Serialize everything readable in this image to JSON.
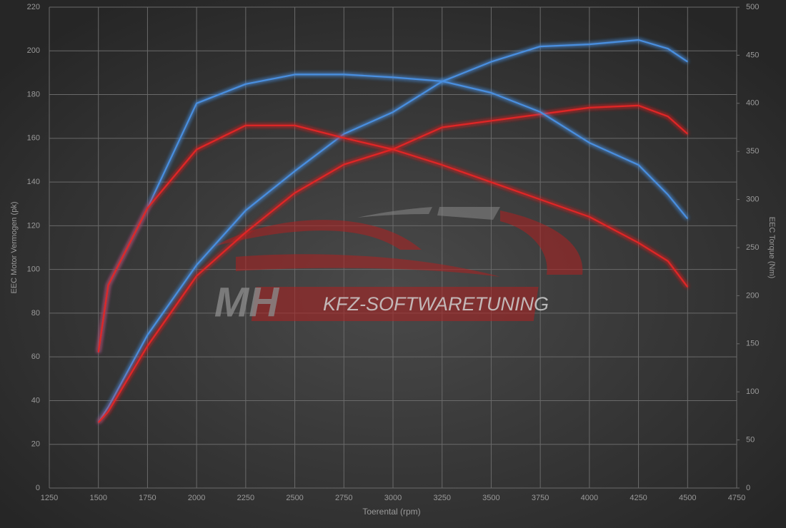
{
  "chart_data": {
    "type": "line",
    "xlabel": "Toerental (rpm)",
    "ylabel": "EEC Motor Vermogen (pk)",
    "y2label": "EEC Torque (Nm)",
    "watermark": [
      "MH",
      "KFZ-SOFTWARETUNING"
    ],
    "x": [
      1500,
      1550,
      1750,
      2000,
      2250,
      2500,
      2750,
      3000,
      3250,
      3500,
      3750,
      4000,
      4250,
      4400,
      4500
    ],
    "series": [
      {
        "color": "#4a8fe0",
        "axis": "y",
        "values": [
          30,
          37,
          70,
          102,
          127,
          145,
          162,
          172,
          186,
          195,
          202,
          203,
          205,
          201,
          195
        ]
      },
      {
        "color": "#e02828",
        "axis": "y",
        "values": [
          30,
          35,
          65,
          97,
          117,
          135,
          148,
          155,
          165,
          168,
          171,
          174,
          175,
          170,
          162
        ]
      },
      {
        "color": "#4a8fe0",
        "axis": "y2",
        "values": [
          141,
          211,
          291,
          400,
          420,
          430,
          430,
          427,
          423,
          411,
          391,
          359,
          336,
          305,
          280
        ]
      },
      {
        "color": "#e02828",
        "axis": "y2",
        "values": [
          141,
          211,
          291,
          352,
          377,
          377,
          364,
          352,
          336,
          318,
          300,
          282,
          255,
          236,
          209
        ]
      }
    ],
    "xlim": [
      1250,
      4750
    ],
    "xticks": [
      1250,
      1500,
      1750,
      2000,
      2250,
      2500,
      2750,
      3000,
      3250,
      3500,
      3750,
      4000,
      4250,
      4500,
      4750
    ],
    "ylim": [
      0,
      220
    ],
    "yticks": [
      0,
      20,
      40,
      60,
      80,
      100,
      120,
      140,
      160,
      180,
      200,
      220
    ],
    "y2lim": [
      0,
      500
    ],
    "y2ticks": [
      0,
      50,
      100,
      150,
      200,
      250,
      300,
      350,
      400,
      450,
      500
    ],
    "grid": true
  }
}
